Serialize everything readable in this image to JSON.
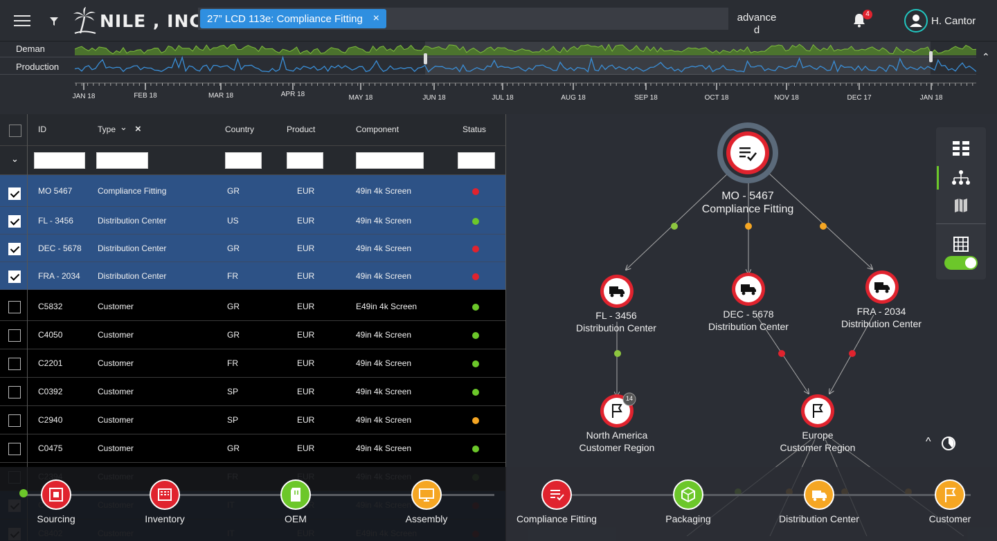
{
  "header": {
    "logo_text": "NILE , INC.",
    "search_chip": "27” LCD 113e: Compliance Fitting",
    "chip_close": "×",
    "advanced_line1": "advance",
    "advanced_line2": "d",
    "notification_count": "4",
    "user_name": "H. Cantor"
  },
  "timeline": {
    "row_labels": [
      "Deman",
      "Production"
    ],
    "months": [
      "JAN 18",
      "FEB 18",
      "MAR 18",
      "APR 18",
      "MAY 18",
      "JUN 18",
      "JUL 18",
      "AUG 18",
      "SEP 18",
      "OCT 18",
      "NOV 18",
      "DEC 17",
      "JAN 18"
    ],
    "collapse_glyph": "⌃"
  },
  "table": {
    "headers": {
      "id": "ID",
      "type": "Type",
      "country": "Country",
      "product": "Product",
      "component": "Component",
      "status": "Status"
    },
    "type_sort_glyph": "⌄",
    "type_clear_glyph": "×",
    "expand_glyph": "⌄",
    "rows": [
      {
        "id": "MO  5467",
        "type": "Compliance Fitting",
        "country": "GR",
        "product": "EUR",
        "component": "49in 4k Screen",
        "status": "red",
        "selected": true
      },
      {
        "id": "FL - 3456",
        "type": "Distribution Center",
        "country": "US",
        "product": "EUR",
        "component": "49in 4k Screen",
        "status": "green",
        "selected": true
      },
      {
        "id": "DEC - 5678",
        "type": "Distribution Center",
        "country": "GR",
        "product": "EUR",
        "component": "49in 4k Screen",
        "status": "red",
        "selected": true
      },
      {
        "id": "FRA - 2034",
        "type": "Distribution Center",
        "country": "FR",
        "product": "EUR",
        "component": "49in 4k Screen",
        "status": "red",
        "selected": true
      },
      {
        "id": "C5832",
        "type": "Customer",
        "country": "GR",
        "product": "EUR",
        "component": "E49in 4k Screen",
        "status": "green",
        "selected": false
      },
      {
        "id": "C4050",
        "type": "Customer",
        "country": "GR",
        "product": "EUR",
        "component": "49in 4k Screen",
        "status": "green",
        "selected": false
      },
      {
        "id": "C2201",
        "type": "Customer",
        "country": "FR",
        "product": "EUR",
        "component": "49in 4k Screen",
        "status": "green",
        "selected": false
      },
      {
        "id": "C0392",
        "type": "Customer",
        "country": "SP",
        "product": "EUR",
        "component": "49in 4k Screen",
        "status": "green",
        "selected": false
      },
      {
        "id": "C2940",
        "type": "Customer",
        "country": "SP",
        "product": "EUR",
        "component": "49in 4k Screen",
        "status": "orange",
        "selected": false
      },
      {
        "id": "C0475",
        "type": "Customer",
        "country": "GR",
        "product": "EUR",
        "component": "49in 4k Screen",
        "status": "green",
        "selected": false
      },
      {
        "id": "C2394",
        "type": "Customer",
        "country": "FR",
        "product": "EUR",
        "component": "49in 4k Screen",
        "status": "green",
        "selected": false
      },
      {
        "id": "C",
        "type": "Customer",
        "country": "IT",
        "product": "EUR",
        "component": "49in 4k Screen",
        "status": "red",
        "selected": true
      },
      {
        "id": "C8402",
        "type": "Customer",
        "country": "IT",
        "product": "EUR",
        "component": "E49in 4k Screen",
        "status": "red",
        "selected": true
      }
    ]
  },
  "graph": {
    "root": {
      "line1": "MO - 5467",
      "line2": "Compliance Fitting"
    },
    "dc1": {
      "line1": "FL - 3456",
      "line2": "Distribution Center"
    },
    "dc2": {
      "line1": "DEC - 5678",
      "line2": "Distribution Center"
    },
    "dc3": {
      "line1": "FRA - 2034",
      "line2": "Distribution Center"
    },
    "region1": {
      "line1": "North America",
      "line2": "Customer Region",
      "count": "14"
    },
    "region2": {
      "line1": "Europe",
      "line2": "Customer Region"
    },
    "expand_glyph": "^"
  },
  "stages": [
    {
      "label": "Sourcing",
      "color": "#e0232e"
    },
    {
      "label": "Inventory",
      "color": "#e0232e"
    },
    {
      "label": "OEM",
      "color": "#6cc72a"
    },
    {
      "label": "Assembly",
      "color": "#f5a623"
    },
    {
      "label": "Compliance Fitting",
      "color": "#e0232e"
    },
    {
      "label": "Packaging",
      "color": "#6cc72a"
    },
    {
      "label": "Distribution Center",
      "color": "#f5a623"
    },
    {
      "label": "Customer",
      "color": "#f5a623"
    }
  ],
  "colors": {
    "red": "#e0232e",
    "green": "#6cc72a",
    "orange": "#f5a623",
    "selected_row": "#2d5286",
    "accent": "#2f8fe0"
  }
}
